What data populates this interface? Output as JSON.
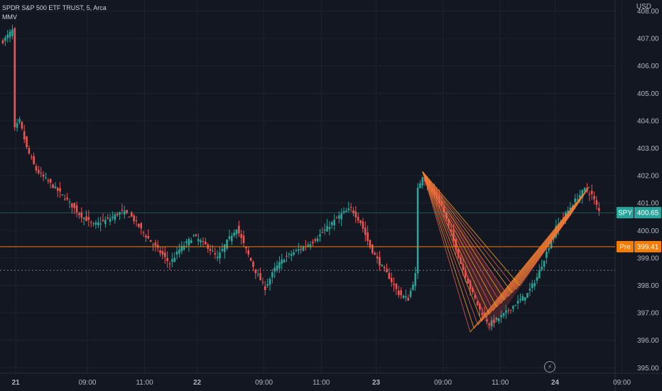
{
  "header": {
    "symbol_line": "SPDR S&P 500 ETF TRUST, 5, Arca",
    "indicator": "MMV",
    "currency": "USD"
  },
  "colors": {
    "background": "#131722",
    "up": "#26a69a",
    "down": "#ef5350",
    "pre_line": "#f57c00",
    "last_line": "#26a69a",
    "pattern_orange": "#f7a21b",
    "pattern_red": "#ef5350"
  },
  "badges": {
    "last": {
      "label": "SPY",
      "value": "400.65",
      "price": 400.65
    },
    "pre": {
      "label": "Pre",
      "value": "399.41",
      "price": 399.41
    }
  },
  "reference_line_price": 398.55,
  "icons": {
    "status": "lightning-icon"
  },
  "chart_data": {
    "type": "candlestick",
    "title": "SPDR S&P 500 ETF TRUST, 5, Arca",
    "ylim": [
      394.8,
      408.4
    ],
    "y_ticks": [
      {
        "value": 408,
        "label": "408.00"
      },
      {
        "value": 407,
        "label": "407.00"
      },
      {
        "value": 406,
        "label": "406.00"
      },
      {
        "value": 405,
        "label": "405.00"
      },
      {
        "value": 404,
        "label": "404.00"
      },
      {
        "value": 403,
        "label": "403.00"
      },
      {
        "value": 402,
        "label": "402.00"
      },
      {
        "value": 401,
        "label": "401.00"
      },
      {
        "value": 400,
        "label": "400.00"
      },
      {
        "value": 399,
        "label": "399.00"
      },
      {
        "value": 398,
        "label": "398.00"
      },
      {
        "value": 397,
        "label": "397.00"
      },
      {
        "value": 396,
        "label": "396.00"
      },
      {
        "value": 395,
        "label": "395.00"
      }
    ],
    "x_ticks": [
      "21",
      "09:00",
      "11:00",
      "22",
      "09:00",
      "11:00",
      "23",
      "09:00",
      "11:00",
      "24",
      "09:00"
    ],
    "x_tick_bold": [
      true,
      false,
      false,
      true,
      false,
      false,
      true,
      false,
      false,
      true,
      false
    ],
    "price_path": [
      [
        0,
        406.9
      ],
      [
        2,
        407.1
      ],
      [
        4,
        407.3
      ],
      [
        5,
        403.7
      ],
      [
        7,
        404.0
      ],
      [
        10,
        403.0
      ],
      [
        14,
        402.2
      ],
      [
        20,
        401.7
      ],
      [
        26,
        401.2
      ],
      [
        32,
        400.6
      ],
      [
        38,
        400.2
      ],
      [
        44,
        400.4
      ],
      [
        50,
        400.7
      ],
      [
        54,
        400.5
      ],
      [
        60,
        399.8
      ],
      [
        66,
        399.2
      ],
      [
        70,
        398.8
      ],
      [
        74,
        399.3
      ],
      [
        80,
        399.8
      ],
      [
        86,
        399.4
      ],
      [
        90,
        399.0
      ],
      [
        94,
        399.6
      ],
      [
        98,
        400.1
      ],
      [
        102,
        399.3
      ],
      [
        106,
        398.5
      ],
      [
        110,
        397.9
      ],
      [
        114,
        398.6
      ],
      [
        118,
        399.0
      ],
      [
        124,
        399.3
      ],
      [
        130,
        399.6
      ],
      [
        136,
        400.1
      ],
      [
        142,
        400.6
      ],
      [
        146,
        400.8
      ],
      [
        150,
        400.3
      ],
      [
        154,
        399.4
      ],
      [
        158,
        398.8
      ],
      [
        162,
        398.3
      ],
      [
        166,
        397.7
      ],
      [
        170,
        397.5
      ],
      [
        173,
        398.4
      ],
      [
        174,
        401.5
      ],
      [
        176,
        402.0
      ],
      [
        180,
        401.4
      ],
      [
        184,
        400.9
      ],
      [
        188,
        399.9
      ],
      [
        192,
        398.8
      ],
      [
        196,
        397.9
      ],
      [
        200,
        397.1
      ],
      [
        204,
        396.6
      ],
      [
        208,
        396.8
      ],
      [
        212,
        397.1
      ],
      [
        216,
        397.4
      ],
      [
        220,
        397.7
      ],
      [
        224,
        398.3
      ],
      [
        228,
        399.2
      ],
      [
        232,
        400.1
      ],
      [
        236,
        400.6
      ],
      [
        240,
        401.1
      ],
      [
        244,
        401.5
      ],
      [
        247,
        401.3
      ],
      [
        250,
        400.7
      ]
    ],
    "annotations": [
      {
        "type": "pattern-fan",
        "anchor_price": 402.15,
        "mid_price": 396.3,
        "end_price": 401.6
      }
    ]
  }
}
